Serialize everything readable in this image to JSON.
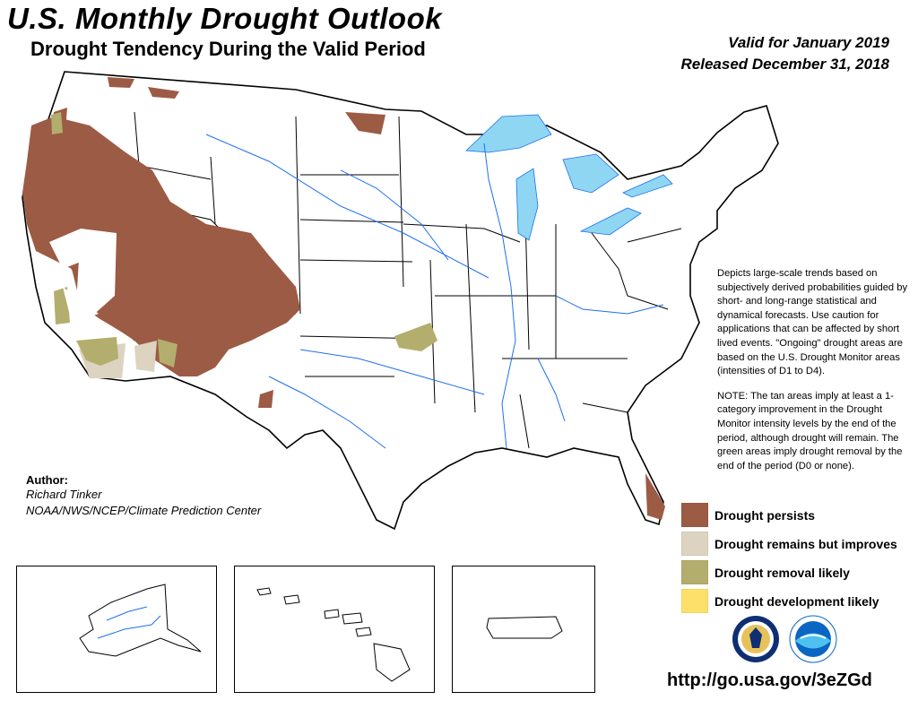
{
  "header": {
    "title": "U.S. Monthly Drought Outlook",
    "subtitle": "Drought Tendency During the Valid Period",
    "valid": "Valid for January 2019",
    "released": "Released December 31, 2018"
  },
  "description": {
    "text": "Depicts large-scale trends based on subjectively derived probabilities guided by short- and long-range statistical and dynamical forecasts. Use caution for applications that can be affected by short lived events. \"Ongoing\" drought areas are based on the U.S. Drought Monitor areas (intensities of D1 to D4).",
    "note": "NOTE: The tan areas imply at least a 1-category improvement in the Drought Monitor intensity levels by the end of the period, although drought will remain. The green areas imply drought removal by the end of the period (D0 or none)."
  },
  "author": {
    "heading": "Author:",
    "name": "Richard Tinker",
    "organization": "NOAA/NWS/NCEP/Climate Prediction Center"
  },
  "legend": [
    {
      "label": "Drought persists",
      "color": "#9c5b44"
    },
    {
      "label": "Drought remains but improves",
      "color": "#dcd3c1"
    },
    {
      "label": "Drought removal likely",
      "color": "#b3ae6d"
    },
    {
      "label": "Drought development likely",
      "color": "#fde06a"
    }
  ],
  "url": "http://go.usa.gov/3eZGd",
  "colors": {
    "water": "#8fd6f2",
    "rivers": "#1e6ff0",
    "boundaries": "#000000"
  },
  "insets": [
    "Alaska",
    "Hawaii",
    "Puerto Rico"
  ],
  "logos": [
    "nws-seal-icon",
    "noaa-logo-icon"
  ]
}
